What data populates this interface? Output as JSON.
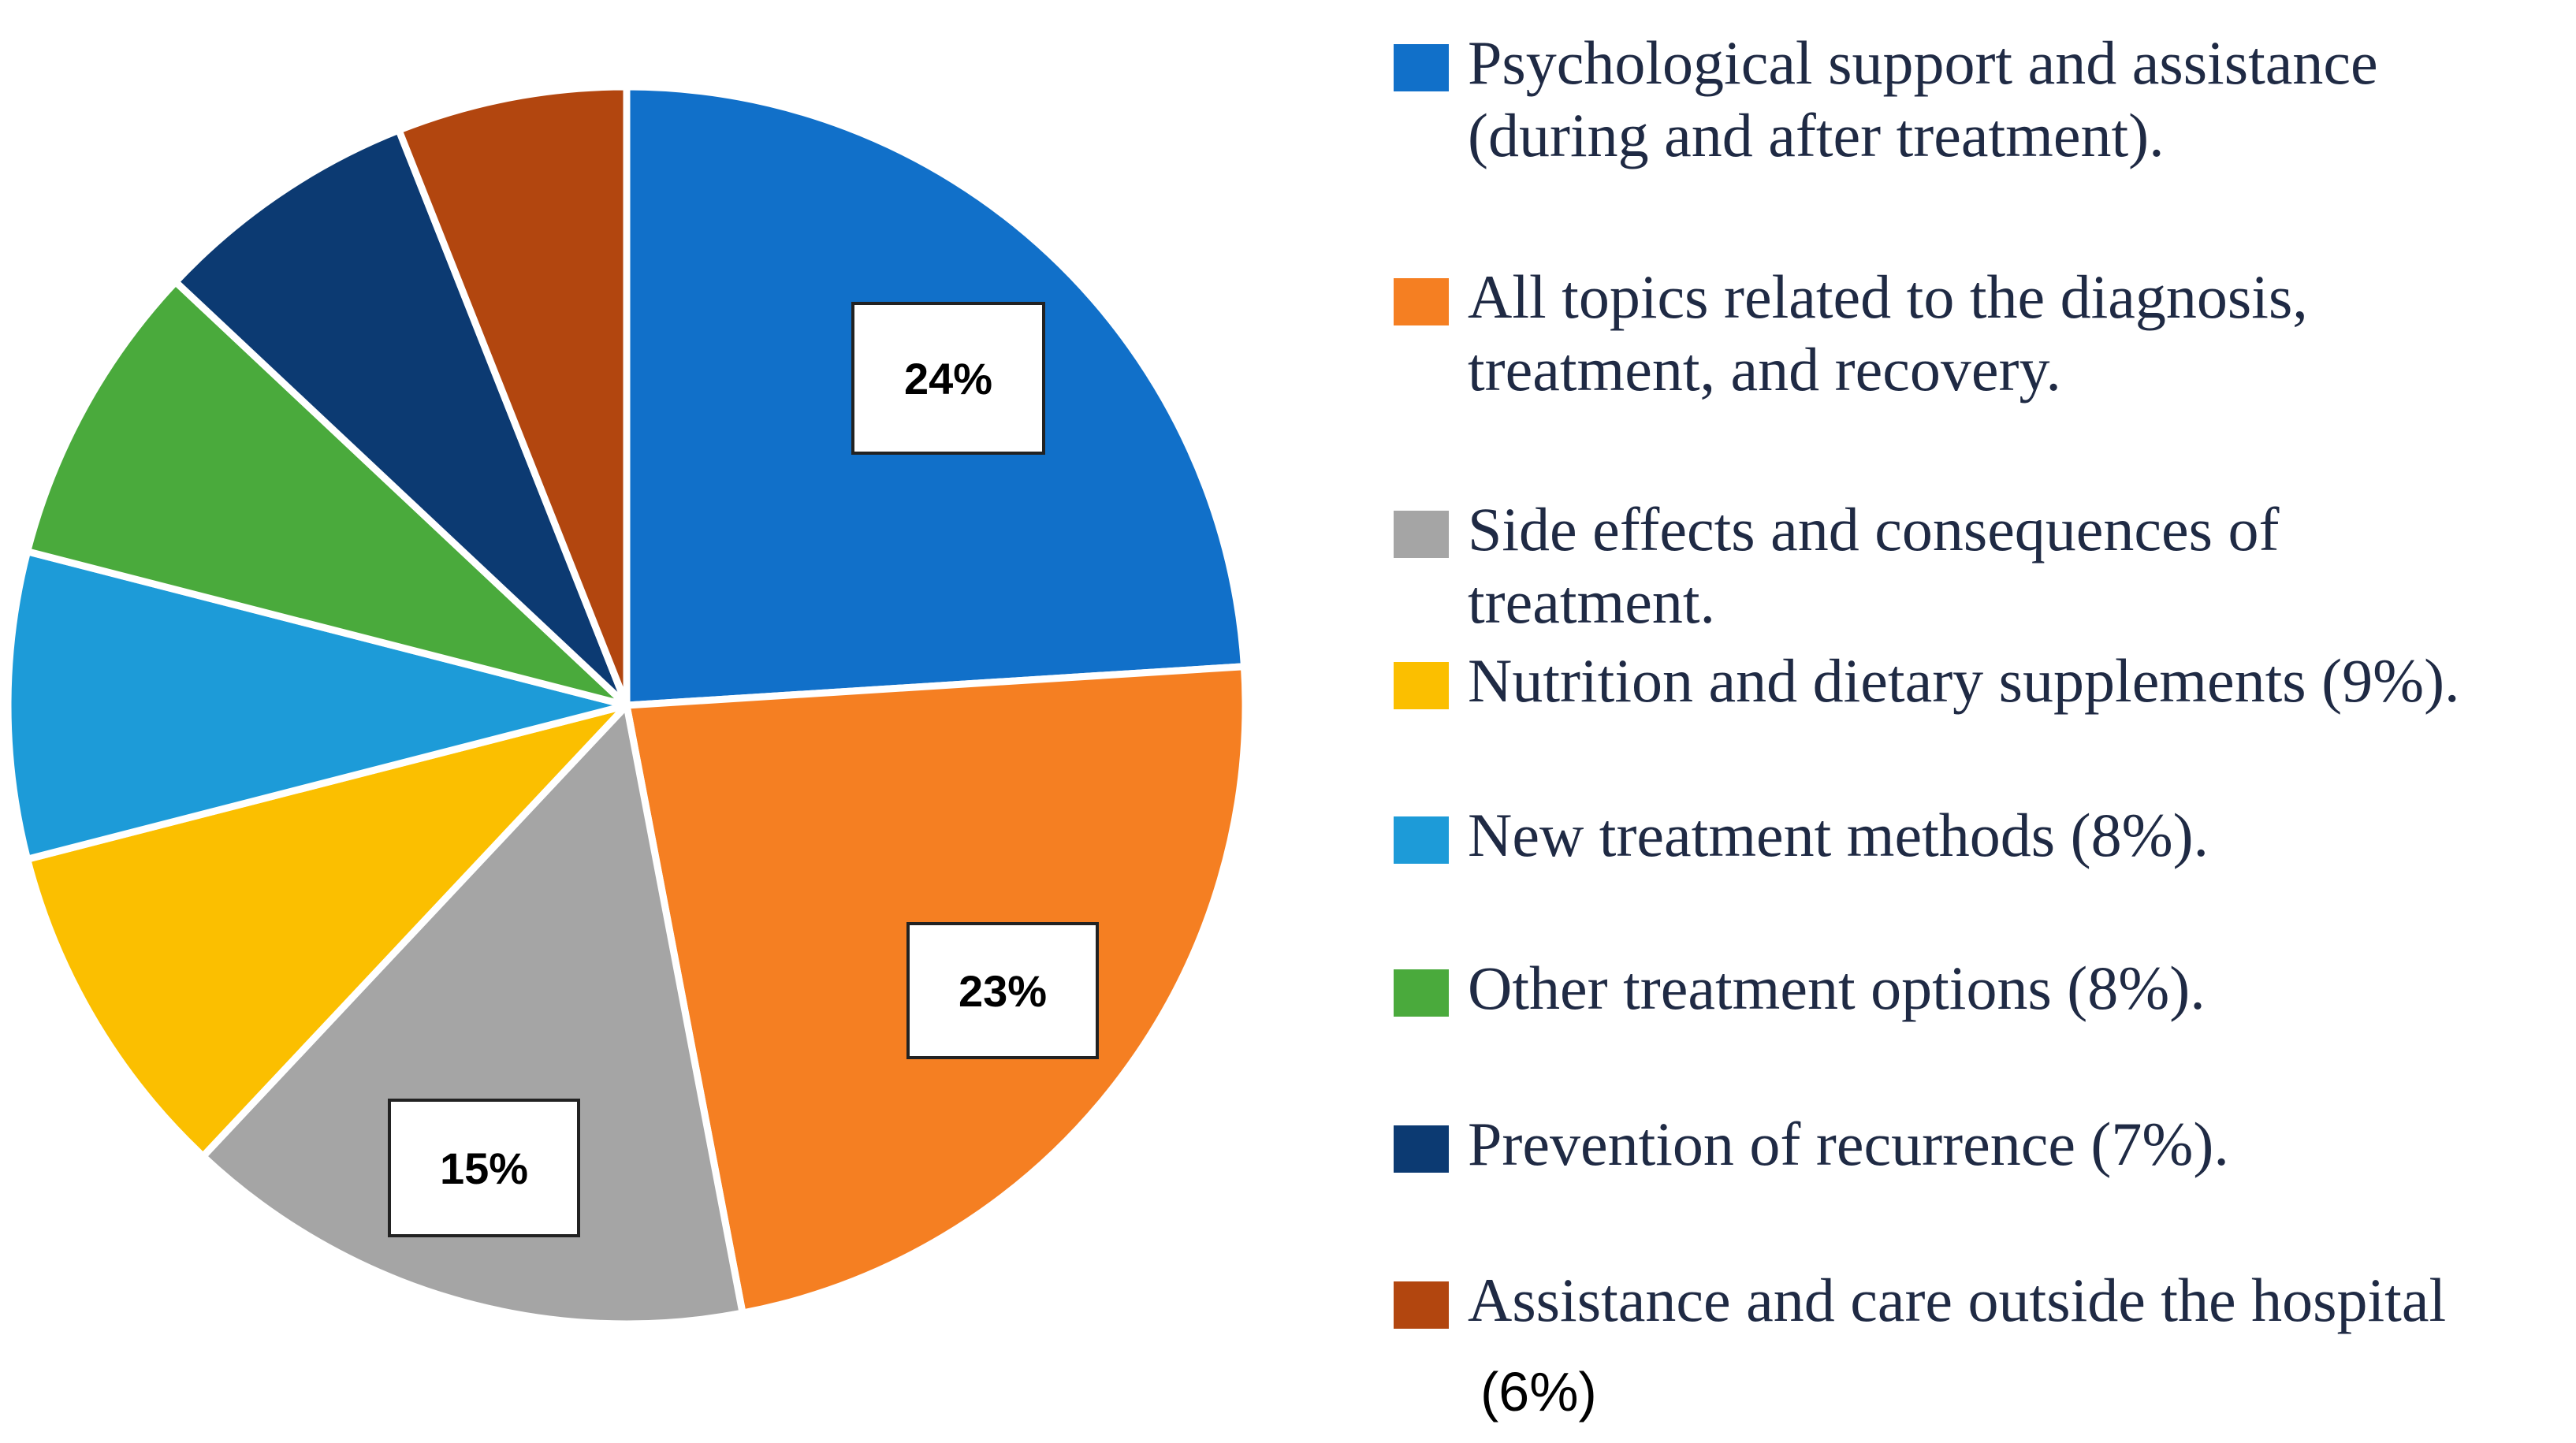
{
  "chart_data": {
    "type": "pie",
    "title": "",
    "start_angle_deg": 0,
    "direction": "clockwise",
    "slices": [
      {
        "label_lines": [
          "Psychological support and assistance",
          "(during and after treatment)."
        ],
        "value": 24,
        "color": "#1170c9",
        "data_label": "24%",
        "show_data_label": true
      },
      {
        "label_lines": [
          "All topics related to the diagnosis,",
          "treatment, and recovery."
        ],
        "value": 23,
        "color": "#f57f22",
        "data_label": "23%",
        "show_data_label": true
      },
      {
        "label_lines": [
          "Side effects and consequences of",
          "treatment."
        ],
        "value": 15,
        "color": "#a5a5a5",
        "data_label": "15%",
        "show_data_label": true
      },
      {
        "label_lines": [
          "Nutrition and dietary supplements (9%)."
        ],
        "value": 9,
        "color": "#fbbf00",
        "data_label": "9%",
        "show_data_label": false
      },
      {
        "label_lines": [
          "New treatment methods (8%)."
        ],
        "value": 8,
        "color": "#1d9bd8",
        "data_label": "8%",
        "show_data_label": false
      },
      {
        "label_lines": [
          "Other treatment options (8%)."
        ],
        "value": 8,
        "color": "#4aaa3c",
        "data_label": "8%",
        "show_data_label": false
      },
      {
        "label_lines": [
          "Prevention of recurrence (7%)."
        ],
        "value": 7,
        "color": "#0c3a72",
        "data_label": "7%",
        "show_data_label": false
      },
      {
        "label_lines": [
          "Assistance and care outside the hospital"
        ],
        "value": 6,
        "color": "#b2460f",
        "data_label": "6%",
        "show_data_label": false
      }
    ],
    "legend_extra_text": "(6%)",
    "legend_position": "right"
  }
}
